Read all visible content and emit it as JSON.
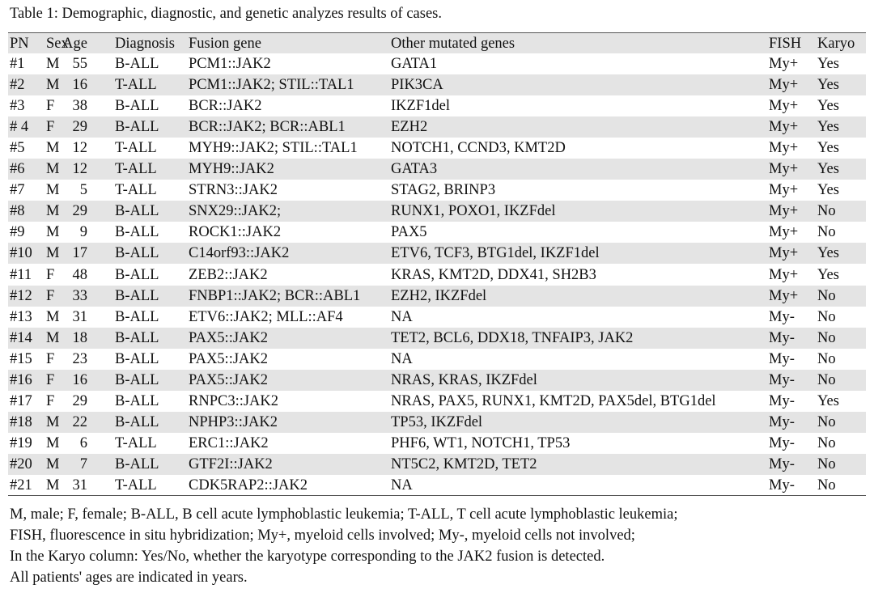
{
  "caption": "Table 1: Demographic, diagnostic, and genetic analyzes results of cases.",
  "table": {
    "header": [
      "PN",
      "Sex",
      "Age",
      "Diagnosis",
      "Fusion gene",
      "Other mutated genes",
      "FISH",
      "Karyo"
    ],
    "rows": [
      [
        "#1",
        "M",
        55,
        "B-ALL",
        "PCM1::JAK2",
        "GATA1",
        "My+",
        "Yes"
      ],
      [
        "#2",
        "M",
        16,
        "T-ALL",
        "PCM1::JAK2; STIL::TAL1",
        "PIK3CA",
        "My+",
        "Yes"
      ],
      [
        "#3",
        "F",
        38,
        "B-ALL",
        "BCR::JAK2",
        "IKZF1del",
        "My+",
        "Yes"
      ],
      [
        "# 4",
        "F",
        29,
        "B-ALL",
        "BCR::JAK2; BCR::ABL1",
        "EZH2",
        "My+",
        "Yes"
      ],
      [
        "#5",
        "M",
        12,
        "T-ALL",
        "MYH9::JAK2; STIL::TAL1",
        "NOTCH1, CCND3, KMT2D",
        "My+",
        "Yes"
      ],
      [
        "#6",
        "M",
        12,
        "T-ALL",
        "MYH9::JAK2",
        "GATA3",
        "My+",
        "Yes"
      ],
      [
        "#7",
        "M",
        5,
        "T-ALL",
        "STRN3::JAK2",
        "STAG2, BRINP3",
        "My+",
        "Yes"
      ],
      [
        "#8",
        "M",
        29,
        "B-ALL",
        "SNX29::JAK2;",
        "RUNX1, POXO1, IKZFdel",
        "My+",
        "No"
      ],
      [
        "#9",
        "M",
        9,
        "B-ALL",
        "ROCK1::JAK2",
        "PAX5",
        "My+",
        "No"
      ],
      [
        "#10",
        "M",
        17,
        "B-ALL",
        "C14orf93::JAK2",
        "ETV6, TCF3, BTG1del, IKZF1del",
        "My+",
        "Yes"
      ],
      [
        "#11",
        "F",
        48,
        "B-ALL",
        "ZEB2::JAK2",
        "KRAS, KMT2D, DDX41, SH2B3",
        "My+",
        "Yes"
      ],
      [
        "#12",
        "F",
        33,
        "B-ALL",
        "FNBP1::JAK2; BCR::ABL1",
        "EZH2, IKZFdel",
        "My+",
        "No"
      ],
      [
        "#13",
        "M",
        31,
        "B-ALL",
        "ETV6::JAK2; MLL::AF4",
        "NA",
        "My-",
        "No"
      ],
      [
        "#14",
        "M",
        18,
        "B-ALL",
        "PAX5::JAK2",
        "TET2, BCL6, DDX18, TNFAIP3, JAK2",
        "My-",
        "No"
      ],
      [
        "#15",
        "F",
        23,
        "B-ALL",
        "PAX5::JAK2",
        "NA",
        "My-",
        "No"
      ],
      [
        "#16",
        "F",
        16,
        "B-ALL",
        "PAX5::JAK2",
        "NRAS, KRAS, IKZFdel",
        "My-",
        "No"
      ],
      [
        "#17",
        "F",
        29,
        "B-ALL",
        "RNPC3::JAK2",
        "NRAS, PAX5, RUNX1, KMT2D, PAX5del, BTG1del",
        "My-",
        "Yes"
      ],
      [
        "#18",
        "M",
        22,
        "B-ALL",
        "NPHP3::JAK2",
        "TP53, IKZFdel",
        "My-",
        "No"
      ],
      [
        "#19",
        "M",
        6,
        "T-ALL",
        "ERC1::JAK2",
        "PHF6, WT1, NOTCH1, TP53",
        "My-",
        "No"
      ],
      [
        "#20",
        "M",
        7,
        "B-ALL",
        "GTF2I::JAK2",
        "NT5C2, KMT2D, TET2",
        "My-",
        "No"
      ],
      [
        "#21",
        "M",
        31,
        "T-ALL",
        "CDK5RAP2::JAK2",
        "NA",
        "My-",
        "No"
      ]
    ]
  },
  "footnotes": [
    "M, male; F, female; B-ALL, B cell acute lymphoblastic leukemia; T-ALL, T cell acute lymphoblastic leukemia;",
    "FISH, fluorescence in situ hybridization; My+, myeloid cells involved; My-, myeloid cells not involved;",
    "In the Karyo column: Yes/No, whether the karyotype corresponding to the JAK2 fusion is detected.",
    "All patients' ages are indicated in years."
  ]
}
